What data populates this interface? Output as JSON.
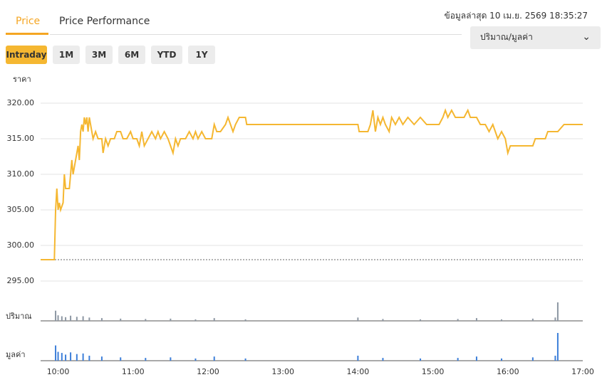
{
  "tabs": [
    "Price",
    "Price Performance"
  ],
  "active_tab": 0,
  "updated": "ข้อมูลล่าสุด 10 เม.ย. 2569 18:35:27",
  "dropdown": "ปริมาณ/มูลค่า",
  "ranges": [
    "Intraday",
    "1M",
    "3M",
    "6M",
    "YTD",
    "1Y"
  ],
  "active_range": 0,
  "chart_data": {
    "type": "line",
    "y_label": "ราคา",
    "color": "#f5b731",
    "xlim": [
      "09:46",
      "17:00"
    ],
    "xticks": [
      "10:00",
      "11:00",
      "12:00",
      "13:00",
      "14:00",
      "15:00",
      "16:00",
      "17:00"
    ],
    "ylim": [
      293.5,
      322
    ],
    "yticks": [
      {
        "value": 295,
        "label": "295.00"
      },
      {
        "value": 300,
        "label": "300.00"
      },
      {
        "value": 305,
        "label": "305.00"
      },
      {
        "value": 310,
        "label": "310.00"
      },
      {
        "value": 315,
        "label": "315.00"
      },
      {
        "value": 320,
        "label": "320.00"
      }
    ],
    "grid": true,
    "reference_line": 298,
    "x": [
      "09:46",
      "09:57",
      "09:58",
      "09:59",
      "10:00",
      "10:01",
      "10:02",
      "10:04",
      "10:05",
      "10:06",
      "10:09",
      "10:11",
      "10:12",
      "10:14",
      "10:16",
      "10:17",
      "10:18",
      "10:19",
      "10:20",
      "10:21",
      "10:22",
      "10:23",
      "10:24",
      "10:25",
      "10:26",
      "10:27",
      "10:28",
      "10:30",
      "10:32",
      "10:35",
      "10:36",
      "10:38",
      "10:40",
      "10:42",
      "10:45",
      "10:47",
      "10:50",
      "10:52",
      "10:55",
      "10:58",
      "11:00",
      "11:03",
      "11:05",
      "11:07",
      "11:09",
      "11:12",
      "11:15",
      "11:18",
      "11:20",
      "11:22",
      "11:25",
      "11:28",
      "11:30",
      "11:32",
      "11:34",
      "11:36",
      "11:38",
      "11:42",
      "11:45",
      "11:48",
      "11:50",
      "11:52",
      "11:55",
      "11:58",
      "12:00",
      "12:03",
      "12:05",
      "12:07",
      "12:10",
      "12:14",
      "12:16",
      "12:18",
      "12:20",
      "12:22",
      "12:25",
      "12:30",
      "12:31",
      "13:00",
      "14:00",
      "14:01",
      "14:08",
      "14:10",
      "14:12",
      "14:14",
      "14:16",
      "14:18",
      "14:20",
      "14:22",
      "14:25",
      "14:27",
      "14:30",
      "14:33",
      "14:36",
      "14:40",
      "14:45",
      "14:50",
      "14:55",
      "15:05",
      "15:08",
      "15:10",
      "15:12",
      "15:15",
      "15:18",
      "15:25",
      "15:28",
      "15:30",
      "15:35",
      "15:38",
      "15:42",
      "15:45",
      "15:48",
      "15:50",
      "15:52",
      "15:55",
      "15:58",
      "16:00",
      "16:02",
      "16:20",
      "16:22",
      "16:30",
      "16:32",
      "16:35",
      "16:40",
      "16:45",
      "17:00"
    ],
    "values": [
      298,
      298,
      305,
      308,
      305,
      306,
      305,
      306,
      310,
      308,
      308,
      312,
      310,
      312,
      314,
      312,
      316,
      317,
      316,
      318,
      317,
      318,
      316,
      318,
      317,
      316,
      315,
      316,
      315,
      315,
      313,
      315,
      314,
      315,
      315,
      316,
      316,
      315,
      315,
      316,
      315,
      315,
      314,
      316,
      314,
      315,
      316,
      315,
      316,
      315,
      316,
      315,
      314,
      313,
      315,
      314,
      315,
      315,
      316,
      315,
      316,
      315,
      316,
      315,
      315,
      315,
      317,
      316,
      316,
      317,
      318,
      317,
      316,
      317,
      318,
      318,
      317,
      317,
      317,
      316,
      316,
      317,
      319,
      316,
      318,
      317,
      318,
      317,
      316,
      318,
      317,
      318,
      317,
      318,
      317,
      318,
      317,
      317,
      318,
      319,
      318,
      319,
      318,
      318,
      319,
      318,
      318,
      317,
      317,
      316,
      317,
      316,
      315,
      316,
      315,
      313,
      314,
      314,
      315,
      315,
      316,
      316,
      316,
      317,
      317
    ],
    "panels": [
      {
        "label": "ปริมาณ",
        "color": "#8d97a3",
        "vlim": [
          0,
          100
        ],
        "x": [
          "09:58",
          "10:00",
          "10:03",
          "10:06",
          "10:10",
          "10:15",
          "10:20",
          "10:25",
          "10:35",
          "10:50",
          "11:10",
          "11:30",
          "11:50",
          "12:05",
          "12:30",
          "14:00",
          "14:20",
          "14:50",
          "15:20",
          "15:35",
          "15:55",
          "16:20",
          "16:38",
          "16:40"
        ],
        "values": [
          55,
          30,
          25,
          20,
          28,
          22,
          25,
          18,
          15,
          12,
          10,
          12,
          8,
          15,
          8,
          18,
          10,
          8,
          10,
          15,
          8,
          12,
          18,
          100
        ]
      },
      {
        "label": "มูลค่า",
        "color": "#3d7fd9",
        "vlim": [
          0,
          100
        ],
        "x": [
          "09:58",
          "10:00",
          "10:03",
          "10:06",
          "10:10",
          "10:15",
          "10:20",
          "10:25",
          "10:35",
          "10:50",
          "11:10",
          "11:30",
          "11:50",
          "12:05",
          "12:30",
          "14:00",
          "14:20",
          "14:50",
          "15:20",
          "15:35",
          "15:55",
          "16:20",
          "16:38",
          "16:40"
        ],
        "values": [
          55,
          32,
          28,
          22,
          30,
          24,
          26,
          18,
          15,
          12,
          10,
          12,
          8,
          15,
          8,
          18,
          10,
          8,
          10,
          15,
          8,
          12,
          18,
          100
        ]
      }
    ]
  }
}
